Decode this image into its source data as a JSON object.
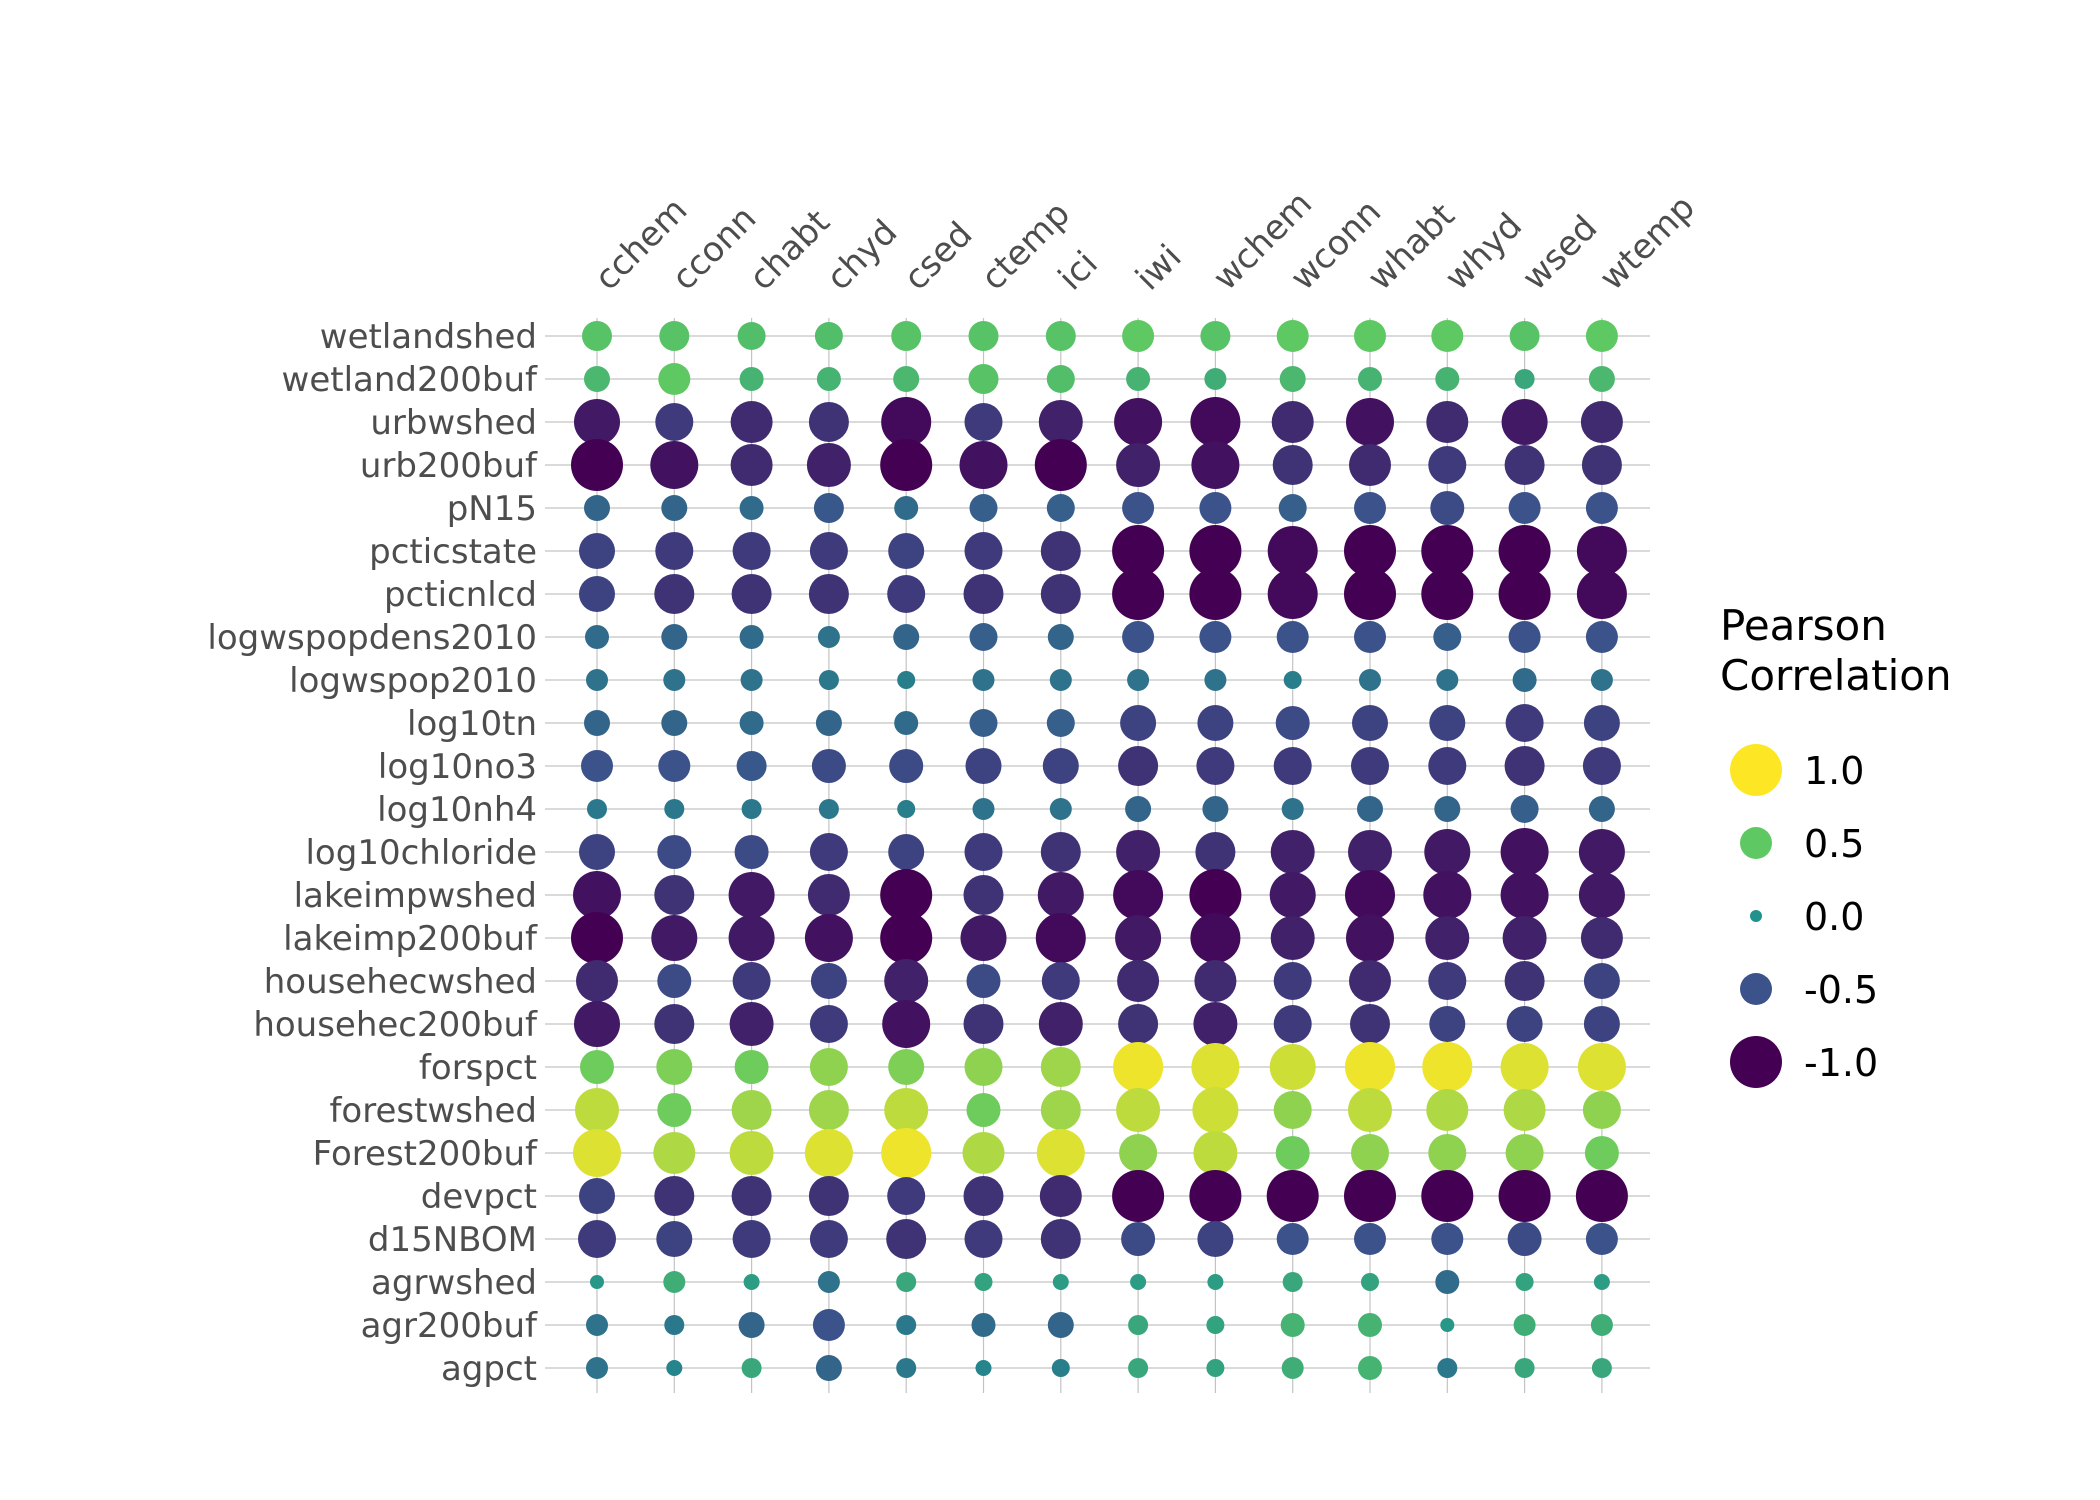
{
  "chart_data": {
    "type": "scatter",
    "subtype": "correlation-bubble-matrix",
    "title": "",
    "xlabel": "",
    "ylabel": "",
    "x_categories": [
      "cchem",
      "cconn",
      "chabt",
      "chyd",
      "csed",
      "ctemp",
      "ici",
      "iwi",
      "wchem",
      "wconn",
      "whabt",
      "whyd",
      "wsed",
      "wtemp"
    ],
    "y_categories": [
      "wetlandshed",
      "wetland200buf",
      "urbwshed",
      "urb200buf",
      "pN15",
      "pcticstate",
      "pcticnlcd",
      "logwspopdens2010",
      "logwspop2010",
      "log10tn",
      "log10no3",
      "log10nh4",
      "log10chloride",
      "lakeimpwshed",
      "lakeimp200buf",
      "househecwshed",
      "househec200buf",
      "forspct",
      "forestwshed",
      "Forest200buf",
      "devpct",
      "d15NBOM",
      "agrwshed",
      "agr200buf",
      "agpct"
    ],
    "value_range": [
      -1,
      1
    ],
    "size_encodes": "absolute value of correlation",
    "color_scale": "viridis",
    "grid": true,
    "legend": {
      "title_line1": "Pearson",
      "title_line2": "Correlation",
      "placement": "right",
      "items": [
        {
          "label": "1.0",
          "value": 1.0
        },
        {
          "label": "0.5",
          "value": 0.5
        },
        {
          "label": "0.0",
          "value": 0.0
        },
        {
          "label": "-0.5",
          "value": -0.5
        },
        {
          "label": "-1.0",
          "value": -1.0
        }
      ]
    },
    "values": [
      [
        0.45,
        0.45,
        0.4,
        0.4,
        0.45,
        0.45,
        0.45,
        0.5,
        0.45,
        0.5,
        0.5,
        0.5,
        0.45,
        0.5
      ],
      [
        0.35,
        0.5,
        0.3,
        0.3,
        0.35,
        0.45,
        0.4,
        0.3,
        0.25,
        0.35,
        0.3,
        0.3,
        0.2,
        0.35
      ],
      [
        -0.85,
        -0.65,
        -0.75,
        -0.7,
        -0.95,
        -0.65,
        -0.8,
        -0.9,
        -0.95,
        -0.75,
        -0.9,
        -0.75,
        -0.85,
        -0.75
      ],
      [
        -1.0,
        -0.9,
        -0.75,
        -0.8,
        -1.0,
        -0.9,
        -1.0,
        -0.8,
        -0.9,
        -0.7,
        -0.75,
        -0.65,
        -0.7,
        -0.7
      ],
      [
        -0.35,
        -0.35,
        -0.3,
        -0.45,
        -0.3,
        -0.4,
        -0.4,
        -0.5,
        -0.5,
        -0.4,
        -0.5,
        -0.55,
        -0.5,
        -0.5
      ],
      [
        -0.6,
        -0.65,
        -0.65,
        -0.65,
        -0.6,
        -0.65,
        -0.7,
        -1.0,
        -1.0,
        -0.95,
        -1.0,
        -1.0,
        -1.0,
        -0.95
      ],
      [
        -0.6,
        -0.7,
        -0.7,
        -0.7,
        -0.65,
        -0.7,
        -0.7,
        -1.0,
        -1.0,
        -0.95,
        -1.0,
        -1.0,
        -1.0,
        -0.95
      ],
      [
        -0.3,
        -0.35,
        -0.3,
        -0.25,
        -0.35,
        -0.4,
        -0.35,
        -0.5,
        -0.5,
        -0.5,
        -0.5,
        -0.4,
        -0.5,
        -0.5
      ],
      [
        -0.25,
        -0.25,
        -0.25,
        -0.2,
        -0.15,
        -0.25,
        -0.25,
        -0.25,
        -0.25,
        -0.15,
        -0.25,
        -0.25,
        -0.3,
        -0.25
      ],
      [
        -0.35,
        -0.35,
        -0.3,
        -0.35,
        -0.3,
        -0.4,
        -0.4,
        -0.6,
        -0.6,
        -0.55,
        -0.6,
        -0.6,
        -0.65,
        -0.6
      ],
      [
        -0.5,
        -0.5,
        -0.45,
        -0.55,
        -0.55,
        -0.6,
        -0.6,
        -0.7,
        -0.65,
        -0.65,
        -0.65,
        -0.65,
        -0.7,
        -0.65
      ],
      [
        -0.2,
        -0.2,
        -0.2,
        -0.2,
        -0.15,
        -0.25,
        -0.25,
        -0.35,
        -0.35,
        -0.25,
        -0.35,
        -0.35,
        -0.4,
        -0.35
      ],
      [
        -0.6,
        -0.55,
        -0.55,
        -0.65,
        -0.6,
        -0.65,
        -0.7,
        -0.8,
        -0.7,
        -0.8,
        -0.8,
        -0.85,
        -0.9,
        -0.85
      ],
      [
        -0.9,
        -0.7,
        -0.85,
        -0.75,
        -1.0,
        -0.7,
        -0.85,
        -0.95,
        -1.0,
        -0.85,
        -0.95,
        -0.9,
        -0.9,
        -0.85
      ],
      [
        -1.0,
        -0.85,
        -0.85,
        -0.9,
        -1.0,
        -0.85,
        -0.95,
        -0.85,
        -0.95,
        -0.8,
        -0.9,
        -0.8,
        -0.8,
        -0.75
      ],
      [
        -0.75,
        -0.55,
        -0.65,
        -0.6,
        -0.8,
        -0.55,
        -0.65,
        -0.75,
        -0.75,
        -0.65,
        -0.75,
        -0.65,
        -0.7,
        -0.6
      ],
      [
        -0.85,
        -0.7,
        -0.8,
        -0.65,
        -0.9,
        -0.7,
        -0.8,
        -0.7,
        -0.8,
        -0.65,
        -0.7,
        -0.6,
        -0.6,
        -0.6
      ],
      [
        0.55,
        0.6,
        0.55,
        0.65,
        0.6,
        0.65,
        0.7,
        0.95,
        0.9,
        0.85,
        0.95,
        0.95,
        0.9,
        0.9
      ],
      [
        0.8,
        0.55,
        0.7,
        0.7,
        0.8,
        0.55,
        0.7,
        0.8,
        0.85,
        0.65,
        0.8,
        0.75,
        0.75,
        0.65
      ],
      [
        0.9,
        0.75,
        0.8,
        0.9,
        0.95,
        0.75,
        0.9,
        0.65,
        0.8,
        0.55,
        0.65,
        0.65,
        0.65,
        0.55
      ],
      [
        -0.6,
        -0.7,
        -0.7,
        -0.7,
        -0.65,
        -0.7,
        -0.75,
        -1.0,
        -1.0,
        -1.0,
        -1.0,
        -1.0,
        -1.0,
        -1.0
      ],
      [
        -0.65,
        -0.6,
        -0.65,
        -0.65,
        -0.7,
        -0.65,
        -0.7,
        -0.55,
        -0.6,
        -0.5,
        -0.5,
        -0.5,
        -0.55,
        -0.5
      ],
      [
        0.05,
        0.25,
        0.1,
        -0.25,
        0.2,
        0.15,
        0.1,
        0.1,
        0.1,
        0.2,
        0.15,
        -0.3,
        0.15,
        0.1
      ],
      [
        -0.25,
        -0.2,
        -0.35,
        -0.5,
        -0.2,
        -0.3,
        -0.35,
        0.2,
        0.15,
        0.3,
        0.3,
        0.05,
        0.25,
        0.25
      ],
      [
        -0.25,
        -0.1,
        0.2,
        -0.35,
        -0.2,
        -0.1,
        -0.15,
        0.2,
        0.15,
        0.25,
        0.3,
        -0.2,
        0.2,
        0.2
      ]
    ]
  }
}
